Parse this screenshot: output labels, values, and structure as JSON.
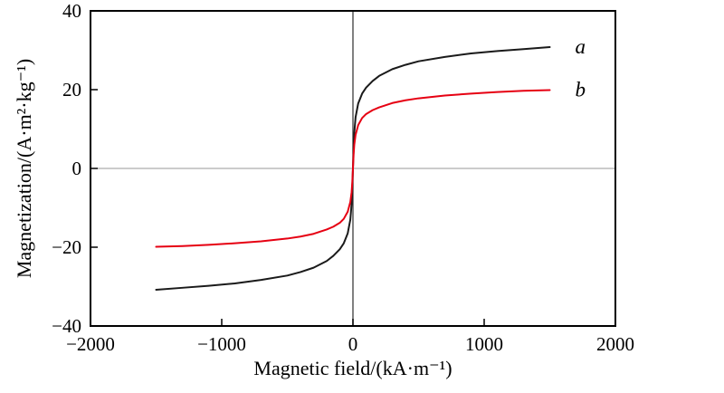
{
  "figure": {
    "background": "#ffffff"
  },
  "chart_data": {
    "type": "line",
    "title": "",
    "xlabel": "Magnetic field/(kA·m⁻¹)",
    "ylabel": "Magnetization/(A·m²·kg⁻¹)",
    "xlim": [
      -2000,
      2000
    ],
    "ylim": [
      -40,
      40
    ],
    "xticks": [
      -2000,
      -1000,
      0,
      1000,
      2000
    ],
    "yticks": [
      -40,
      -20,
      0,
      20,
      40
    ],
    "grid": false,
    "legend_position": "end-of-curve",
    "colors": {
      "axis_box": "#000000",
      "zero_line_vertical": "#3d3d3d",
      "zero_line_horizontal": "#9a9a9a",
      "tick": "#000000",
      "curve_label": "#000000"
    },
    "series": [
      {
        "name": "a",
        "color": "#1a1a1a",
        "points": [
          [
            -1500,
            -30.8
          ],
          [
            -1300,
            -30.3
          ],
          [
            -1100,
            -29.8
          ],
          [
            -900,
            -29.2
          ],
          [
            -700,
            -28.3
          ],
          [
            -500,
            -27.2
          ],
          [
            -400,
            -26.3
          ],
          [
            -300,
            -25.2
          ],
          [
            -200,
            -23.5
          ],
          [
            -150,
            -22.2
          ],
          [
            -100,
            -20.5
          ],
          [
            -70,
            -19.0
          ],
          [
            -40,
            -16.5
          ],
          [
            -20,
            -13.0
          ],
          [
            -10,
            -9.0
          ],
          [
            -5,
            -5.0
          ],
          [
            0,
            0
          ],
          [
            5,
            5.0
          ],
          [
            10,
            9.0
          ],
          [
            20,
            13.0
          ],
          [
            40,
            16.5
          ],
          [
            70,
            19.0
          ],
          [
            100,
            20.5
          ],
          [
            150,
            22.2
          ],
          [
            200,
            23.5
          ],
          [
            300,
            25.2
          ],
          [
            400,
            26.3
          ],
          [
            500,
            27.2
          ],
          [
            700,
            28.3
          ],
          [
            900,
            29.2
          ],
          [
            1100,
            29.8
          ],
          [
            1300,
            30.3
          ],
          [
            1500,
            30.8
          ]
        ]
      },
      {
        "name": "b",
        "color": "#e60012",
        "points": [
          [
            -1500,
            -19.9
          ],
          [
            -1300,
            -19.7
          ],
          [
            -1100,
            -19.4
          ],
          [
            -900,
            -19.0
          ],
          [
            -700,
            -18.5
          ],
          [
            -500,
            -17.8
          ],
          [
            -400,
            -17.3
          ],
          [
            -300,
            -16.6
          ],
          [
            -200,
            -15.5
          ],
          [
            -150,
            -14.8
          ],
          [
            -100,
            -13.8
          ],
          [
            -70,
            -12.8
          ],
          [
            -40,
            -11.0
          ],
          [
            -20,
            -8.5
          ],
          [
            -10,
            -6.0
          ],
          [
            -5,
            -3.5
          ],
          [
            0,
            0
          ],
          [
            5,
            3.5
          ],
          [
            10,
            6.0
          ],
          [
            20,
            8.5
          ],
          [
            40,
            11.0
          ],
          [
            70,
            12.8
          ],
          [
            100,
            13.8
          ],
          [
            150,
            14.8
          ],
          [
            200,
            15.5
          ],
          [
            300,
            16.6
          ],
          [
            400,
            17.3
          ],
          [
            500,
            17.8
          ],
          [
            700,
            18.5
          ],
          [
            900,
            19.0
          ],
          [
            1100,
            19.4
          ],
          [
            1300,
            19.7
          ],
          [
            1500,
            19.9
          ]
        ]
      }
    ]
  }
}
